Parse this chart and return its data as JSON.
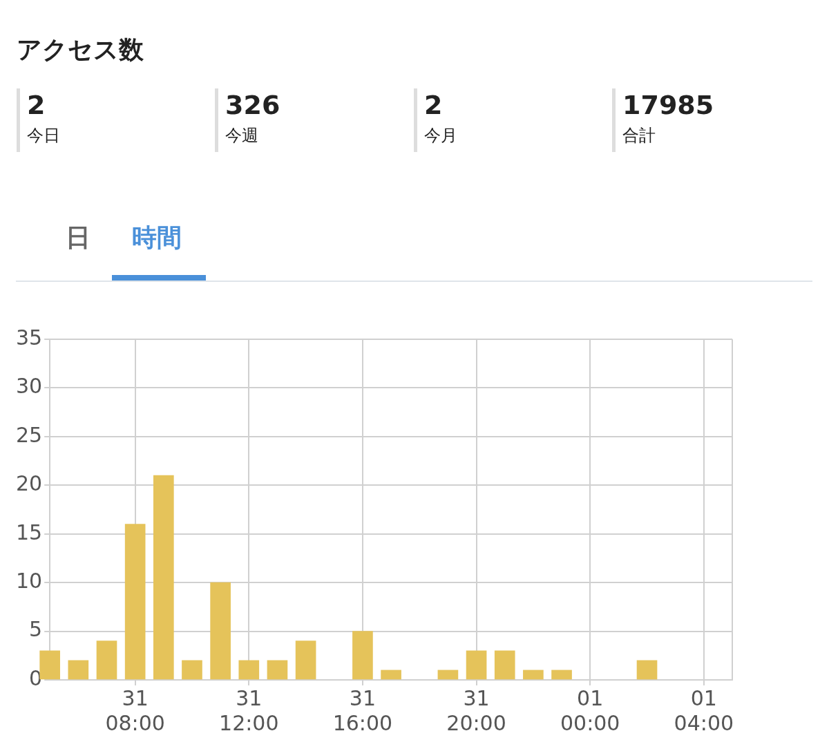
{
  "chart_data": {
    "type": "bar",
    "title": "アクセス数",
    "annotations": [
      "2",
      "今日",
      "326",
      "今週",
      "2",
      "今月",
      "17985",
      "合計",
      "日",
      "時間"
    ],
    "categories": [
      null,
      null,
      null,
      "31\n08:00",
      null,
      null,
      null,
      "31\n12:00",
      null,
      null,
      null,
      "31\n16:00",
      null,
      null,
      null,
      "31\n20:00",
      null,
      null,
      null,
      "01\n00:00",
      null,
      null,
      null,
      "01\n04:00",
      null
    ],
    "values": [
      3,
      2,
      4,
      16,
      21,
      2,
      10,
      2,
      2,
      4,
      null,
      5,
      1,
      null,
      1,
      3,
      3,
      1,
      1,
      null,
      null,
      2,
      null,
      null,
      null
    ],
    "color": "#e5c35a",
    "ylim": [
      0,
      35
    ],
    "yticks": [
      0,
      5,
      10,
      15,
      20,
      25,
      30,
      35
    ],
    "grid": true,
    "legend": false
  }
}
